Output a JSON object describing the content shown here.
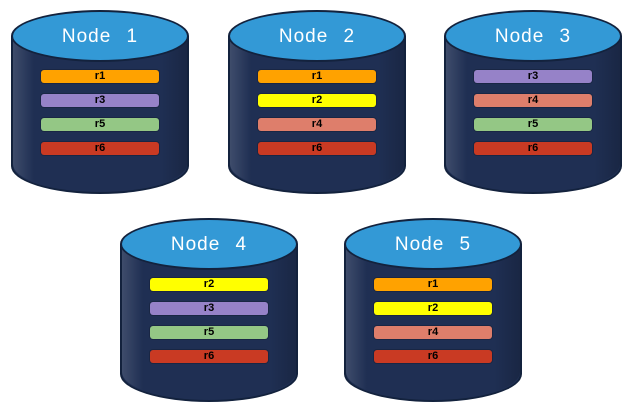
{
  "diagram": {
    "kind": "database-cluster-replica-placement",
    "page_bg": "#FFFFFF"
  },
  "cylinder_style": {
    "body_color": "#1F2F53",
    "top_color": "#3399D6",
    "outline_color": "#13223D",
    "label_color": "#FFFFFF",
    "bar_text_color": "#000000"
  },
  "replica_colors": {
    "r1": "#FFA200",
    "r2": "#FFFF00",
    "r3": "#9682C8",
    "r4": "#DE7E6B",
    "r5": "#94C785",
    "r6": "#C93A23"
  },
  "nodes": [
    {
      "label": "Node 1",
      "replicas": [
        "r1",
        "r3",
        "r5",
        "r6"
      ]
    },
    {
      "label": "Node 2",
      "replicas": [
        "r1",
        "r2",
        "r4",
        "r6"
      ]
    },
    {
      "label": "Node 3",
      "replicas": [
        "r3",
        "r4",
        "r5",
        "r6"
      ]
    },
    {
      "label": "Node 4",
      "replicas": [
        "r2",
        "r3",
        "r5",
        "r6"
      ]
    },
    {
      "label": "Node 5",
      "replicas": [
        "r1",
        "r2",
        "r4",
        "r6"
      ]
    }
  ]
}
